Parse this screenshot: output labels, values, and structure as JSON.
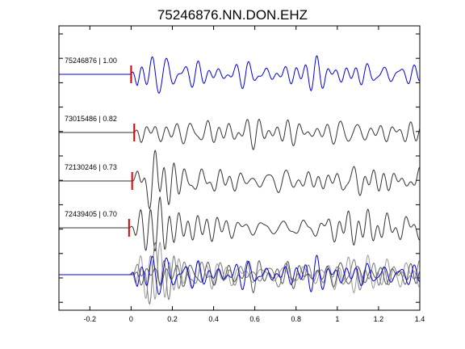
{
  "chart_data": {
    "type": "line",
    "title": "75246876.NN.DON.EHZ",
    "xlabel": "",
    "ylabel": "",
    "xlim": [
      -0.35,
      1.4
    ],
    "x_ticks": [
      -0.2,
      0,
      0.2,
      0.4,
      0.6,
      0.8,
      1,
      1.2,
      1.4
    ],
    "x_tick_labels": [
      "-0.2",
      "0",
      "0.2",
      "0.4",
      "0.6",
      "0.8",
      "1",
      "1.2",
      "1.4"
    ],
    "grid": false,
    "legend": "none",
    "pick_color": "#e00000",
    "traces": [
      {
        "label": "75246876 | 1.00",
        "color": "#0000e0",
        "pick_time": 0.0
      },
      {
        "label": "73015486 | 0.82",
        "color": "#333333",
        "pick_time": 0.015
      },
      {
        "label": "72130246 | 0.73",
        "color": "#333333",
        "pick_time": 0.005
      },
      {
        "label": "72439405 | 0.70",
        "color": "#333333",
        "pick_time": -0.01
      }
    ],
    "stack": {
      "colors": [
        "#0000e0",
        "#555555",
        "#777777",
        "#999999"
      ]
    }
  }
}
